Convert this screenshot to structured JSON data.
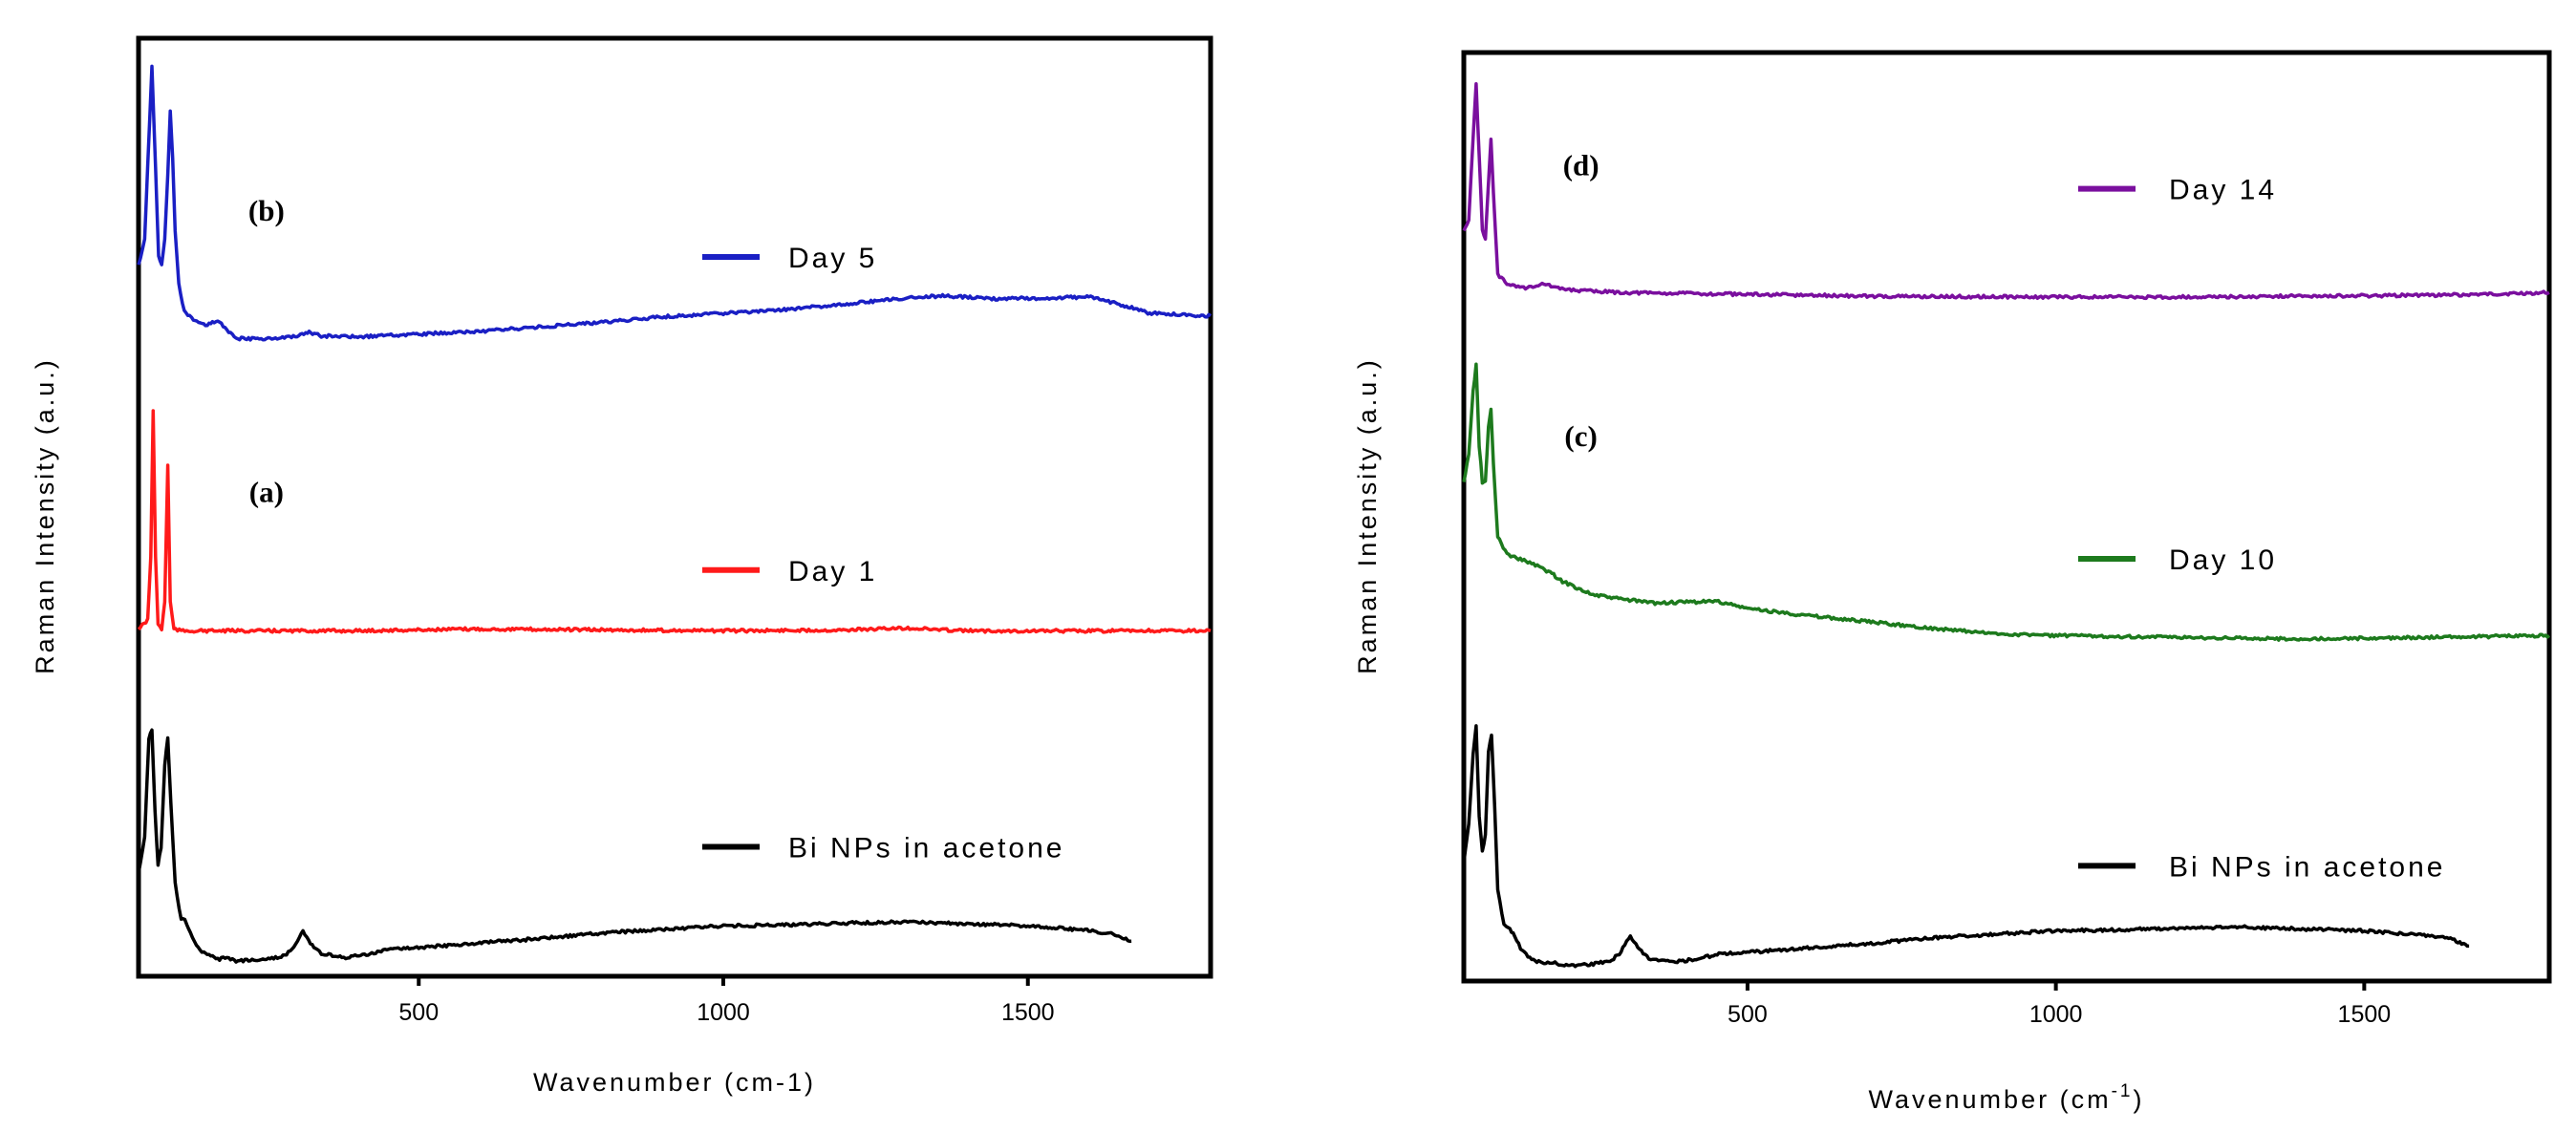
{
  "chart_data": [
    {
      "type": "line",
      "title": "",
      "xlabel": "Wavenumber (cm-1)",
      "ylabel": "Raman Intensity (a.u.)",
      "xlim": [
        40,
        1800
      ],
      "ylim": [
        0,
        1
      ],
      "xticks": [
        500,
        1000,
        1500
      ],
      "grid": false,
      "legend_position": "right",
      "panel_labels": [
        {
          "text": "(b)",
          "x": 250,
          "y": 0.82
        },
        {
          "text": "(a)",
          "x": 250,
          "y": 0.51
        }
      ],
      "series": [
        {
          "name": "Day 5",
          "color": "#1a1fc4",
          "legend_y": 0.78,
          "points": [
            [
              40,
              0.77
            ],
            [
              50,
              0.8
            ],
            [
              55,
              0.88
            ],
            [
              62,
              0.99
            ],
            [
              68,
              0.88
            ],
            [
              73,
              0.78
            ],
            [
              78,
              0.77
            ],
            [
              83,
              0.8
            ],
            [
              88,
              0.87
            ],
            [
              92,
              0.94
            ],
            [
              96,
              0.89
            ],
            [
              100,
              0.81
            ],
            [
              106,
              0.75
            ],
            [
              115,
              0.72
            ],
            [
              130,
              0.71
            ],
            [
              150,
              0.705
            ],
            [
              170,
              0.71
            ],
            [
              185,
              0.7
            ],
            [
              200,
              0.69
            ],
            [
              250,
              0.69
            ],
            [
              300,
              0.692
            ],
            [
              320,
              0.697
            ],
            [
              340,
              0.693
            ],
            [
              400,
              0.692
            ],
            [
              500,
              0.695
            ],
            [
              600,
              0.698
            ],
            [
              700,
              0.703
            ],
            [
              800,
              0.708
            ],
            [
              900,
              0.714
            ],
            [
              1000,
              0.718
            ],
            [
              1100,
              0.722
            ],
            [
              1200,
              0.728
            ],
            [
              1300,
              0.735
            ],
            [
              1360,
              0.737
            ],
            [
              1450,
              0.734
            ],
            [
              1550,
              0.735
            ],
            [
              1600,
              0.736
            ],
            [
              1650,
              0.728
            ],
            [
              1700,
              0.718
            ],
            [
              1800,
              0.715
            ]
          ]
        },
        {
          "name": "Day 1",
          "color": "#ff1a1a",
          "legend_y": 0.435,
          "points": [
            [
              40,
              0.37
            ],
            [
              55,
              0.38
            ],
            [
              60,
              0.45
            ],
            [
              64,
              0.61
            ],
            [
              68,
              0.45
            ],
            [
              72,
              0.375
            ],
            [
              78,
              0.37
            ],
            [
              83,
              0.4
            ],
            [
              88,
              0.55
            ],
            [
              92,
              0.4
            ],
            [
              98,
              0.37
            ],
            [
              110,
              0.368
            ],
            [
              200,
              0.368
            ],
            [
              400,
              0.368
            ],
            [
              600,
              0.37
            ],
            [
              800,
              0.369
            ],
            [
              1000,
              0.368
            ],
            [
              1200,
              0.369
            ],
            [
              1300,
              0.371
            ],
            [
              1400,
              0.368
            ],
            [
              1600,
              0.368
            ],
            [
              1800,
              0.368
            ]
          ]
        },
        {
          "name": "Bi NPs in acetone",
          "color": "#000000",
          "legend_y": 0.13,
          "points": [
            [
              40,
              0.1
            ],
            [
              50,
              0.14
            ],
            [
              57,
              0.25
            ],
            [
              62,
              0.26
            ],
            [
              67,
              0.17
            ],
            [
              72,
              0.11
            ],
            [
              77,
              0.13
            ],
            [
              83,
              0.22
            ],
            [
              88,
              0.25
            ],
            [
              93,
              0.18
            ],
            [
              100,
              0.09
            ],
            [
              110,
              0.05
            ],
            [
              116,
              0.05
            ],
            [
              122,
              0.04
            ],
            [
              135,
              0.02
            ],
            [
              150,
              0.012
            ],
            [
              170,
              0.006
            ],
            [
              185,
              0.008
            ],
            [
              200,
              0.004
            ],
            [
              250,
              0.006
            ],
            [
              280,
              0.01
            ],
            [
              295,
              0.02
            ],
            [
              310,
              0.038
            ],
            [
              322,
              0.024
            ],
            [
              340,
              0.012
            ],
            [
              380,
              0.008
            ],
            [
              420,
              0.012
            ],
            [
              460,
              0.018
            ],
            [
              500,
              0.019
            ],
            [
              600,
              0.024
            ],
            [
              700,
              0.029
            ],
            [
              800,
              0.035
            ],
            [
              900,
              0.039
            ],
            [
              1000,
              0.043
            ],
            [
              1100,
              0.044
            ],
            [
              1200,
              0.046
            ],
            [
              1300,
              0.047
            ],
            [
              1400,
              0.045
            ],
            [
              1500,
              0.043
            ],
            [
              1600,
              0.038
            ],
            [
              1640,
              0.034
            ],
            [
              1670,
              0.026
            ]
          ]
        }
      ]
    },
    {
      "type": "line",
      "title": "",
      "xlabel": "Wavenumber (cm",
      "xlabel_sup": "-1",
      "xlabel_end": ")",
      "ylabel": "Raman Intensity (a.u.)",
      "xlim": [
        40,
        1800
      ],
      "ylim": [
        0,
        1
      ],
      "xticks": [
        500,
        1000,
        1500
      ],
      "grid": false,
      "legend_position": "right",
      "panel_labels": [
        {
          "text": "(d)",
          "x": 230,
          "y": 0.88
        },
        {
          "text": "(c)",
          "x": 230,
          "y": 0.58
        }
      ],
      "series": [
        {
          "name": "Day 14",
          "color": "#7a0f9e",
          "legend_y": 0.865,
          "points": [
            [
              40,
              0.82
            ],
            [
              48,
              0.83
            ],
            [
              55,
              0.92
            ],
            [
              60,
              0.98
            ],
            [
              65,
              0.9
            ],
            [
              70,
              0.82
            ],
            [
              75,
              0.81
            ],
            [
              80,
              0.87
            ],
            [
              84,
              0.92
            ],
            [
              88,
              0.86
            ],
            [
              95,
              0.77
            ],
            [
              110,
              0.76
            ],
            [
              140,
              0.755
            ],
            [
              170,
              0.76
            ],
            [
              190,
              0.755
            ],
            [
              230,
              0.752
            ],
            [
              300,
              0.75
            ],
            [
              500,
              0.748
            ],
            [
              700,
              0.746
            ],
            [
              1000,
              0.745
            ],
            [
              1200,
              0.745
            ],
            [
              1400,
              0.746
            ],
            [
              1600,
              0.747
            ],
            [
              1700,
              0.748
            ],
            [
              1800,
              0.75
            ]
          ]
        },
        {
          "name": "Day 10",
          "color": "#1d7a1d",
          "legend_y": 0.455,
          "points": [
            [
              40,
              0.54
            ],
            [
              48,
              0.57
            ],
            [
              55,
              0.64
            ],
            [
              60,
              0.67
            ],
            [
              65,
              0.58
            ],
            [
              70,
              0.54
            ],
            [
              75,
              0.54
            ],
            [
              80,
              0.6
            ],
            [
              84,
              0.62
            ],
            [
              88,
              0.56
            ],
            [
              95,
              0.48
            ],
            [
              110,
              0.46
            ],
            [
              150,
              0.45
            ],
            [
              180,
              0.44
            ],
            [
              200,
              0.43
            ],
            [
              250,
              0.415
            ],
            [
              300,
              0.41
            ],
            [
              350,
              0.406
            ],
            [
              450,
              0.408
            ],
            [
              500,
              0.4
            ],
            [
              600,
              0.392
            ],
            [
              700,
              0.385
            ],
            [
              800,
              0.378
            ],
            [
              900,
              0.372
            ],
            [
              1000,
              0.37
            ],
            [
              1200,
              0.368
            ],
            [
              1400,
              0.366
            ],
            [
              1600,
              0.368
            ],
            [
              1800,
              0.37
            ]
          ]
        },
        {
          "name": "Bi NPs in acetone",
          "color": "#000000",
          "legend_y": 0.115,
          "points": [
            [
              40,
              0.12
            ],
            [
              48,
              0.16
            ],
            [
              55,
              0.24
            ],
            [
              60,
              0.27
            ],
            [
              65,
              0.17
            ],
            [
              70,
              0.13
            ],
            [
              75,
              0.15
            ],
            [
              80,
              0.24
            ],
            [
              85,
              0.26
            ],
            [
              90,
              0.18
            ],
            [
              95,
              0.09
            ],
            [
              105,
              0.05
            ],
            [
              112,
              0.048
            ],
            [
              120,
              0.04
            ],
            [
              135,
              0.02
            ],
            [
              150,
              0.012
            ],
            [
              170,
              0.006
            ],
            [
              185,
              0.008
            ],
            [
              200,
              0.004
            ],
            [
              250,
              0.006
            ],
            [
              280,
              0.01
            ],
            [
              295,
              0.02
            ],
            [
              310,
              0.038
            ],
            [
              322,
              0.024
            ],
            [
              340,
              0.012
            ],
            [
              380,
              0.008
            ],
            [
              420,
              0.012
            ],
            [
              460,
              0.018
            ],
            [
              500,
              0.019
            ],
            [
              600,
              0.024
            ],
            [
              700,
              0.029
            ],
            [
              800,
              0.035
            ],
            [
              900,
              0.039
            ],
            [
              1000,
              0.043
            ],
            [
              1100,
              0.044
            ],
            [
              1200,
              0.046
            ],
            [
              1300,
              0.047
            ],
            [
              1400,
              0.045
            ],
            [
              1500,
              0.043
            ],
            [
              1600,
              0.038
            ],
            [
              1640,
              0.034
            ],
            [
              1670,
              0.026
            ]
          ]
        }
      ]
    }
  ]
}
